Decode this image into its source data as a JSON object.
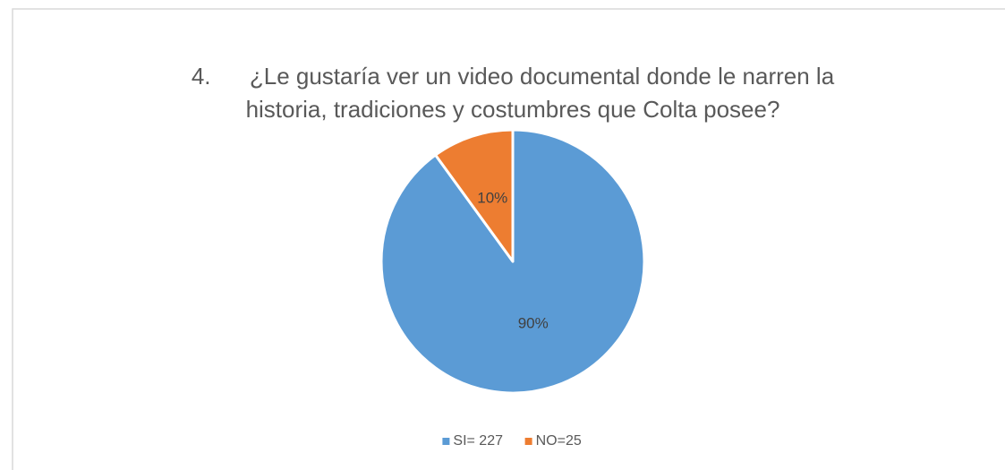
{
  "chart_data": {
    "type": "pie",
    "title": [
      "4.      ¿Le gustaría ver un video documental donde le narren la",
      "historia, tradiciones y costumbres que Colta posee?"
    ],
    "categories": [
      "SI= 227",
      "NO=25"
    ],
    "values": [
      90,
      10
    ],
    "value_labels": [
      "90%",
      "10%"
    ],
    "colors": [
      "#5b9bd5",
      "#ed7d31"
    ],
    "legend": "bottom"
  }
}
